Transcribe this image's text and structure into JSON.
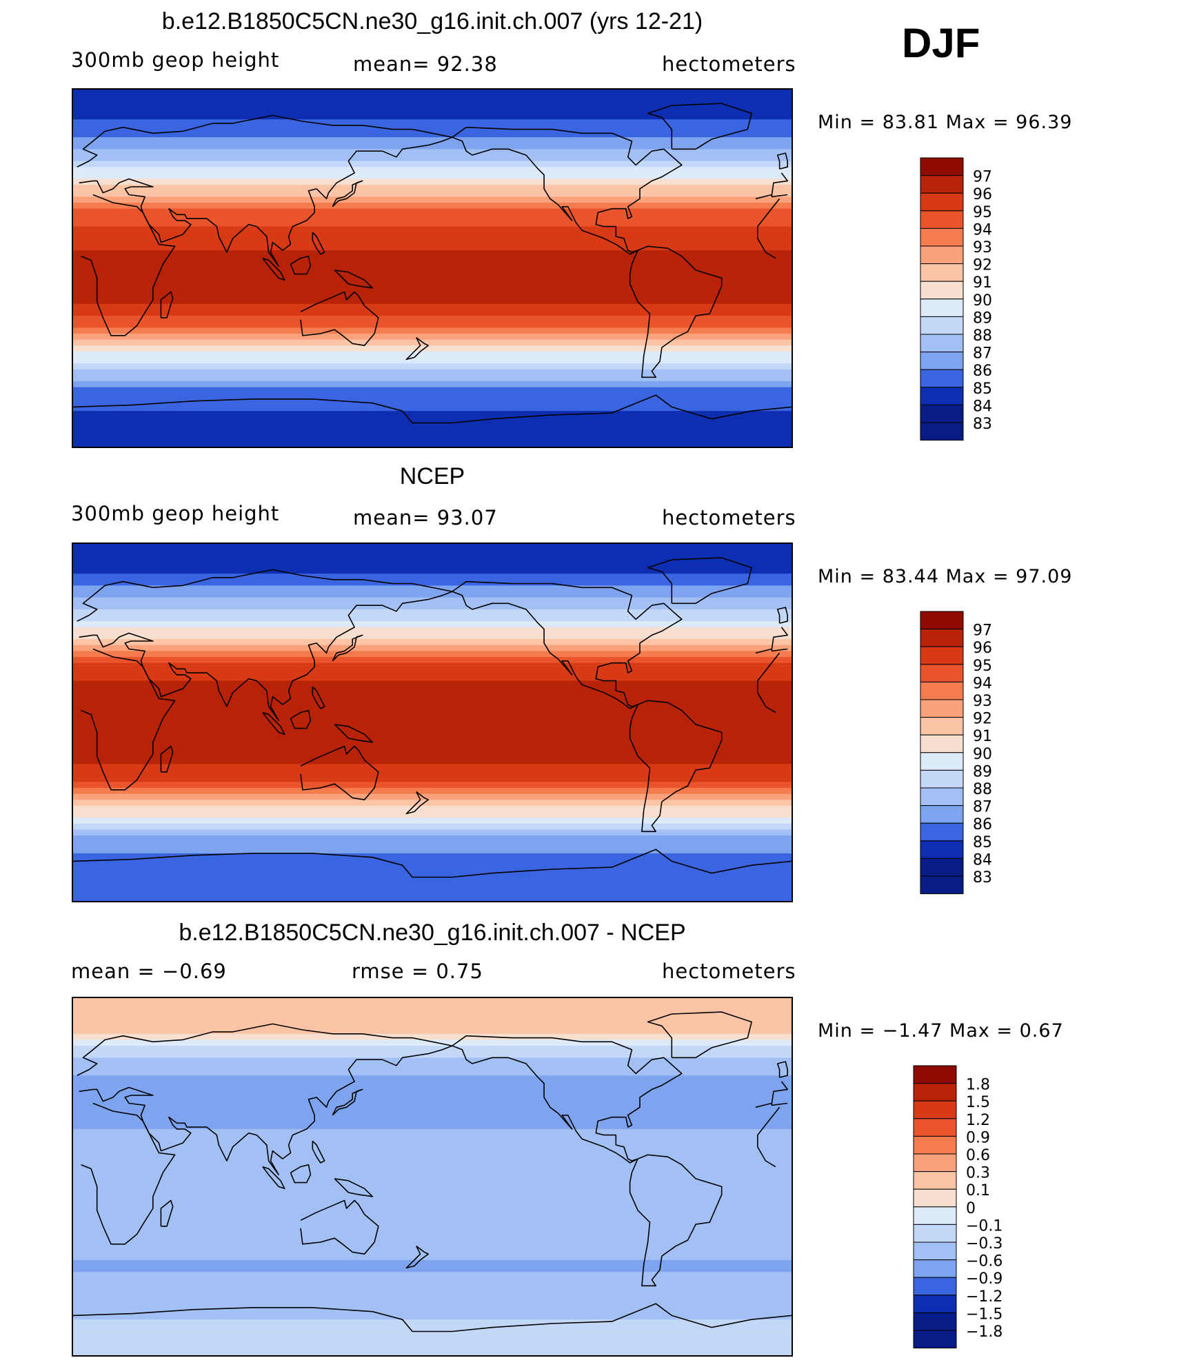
{
  "season": "DJF",
  "colors": {
    "warm": [
      "#f7dfd0",
      "#fbc4a6",
      "#f9a27b",
      "#f47c4f",
      "#e9542a",
      "#d73a14",
      "#b82307",
      "#8f0b03"
    ],
    "cool": [
      "#ddeaf9",
      "#c3d7f7",
      "#a3c0f4",
      "#7ea4f0",
      "#5b86eb",
      "#3a65e0",
      "#1f48d0",
      "#0d2eb0",
      "#071c86"
    ],
    "coast": "#000000"
  },
  "panels": [
    {
      "title": "b.e12.B1850C5CN.ne30_g16.init.ch.007 (yrs 12-21)",
      "left_label": "300mb  geop  height",
      "center_label": "mean=   92.38",
      "right_label": "hectometers",
      "min_max": "Min  =    83.81  Max  =    96.39"
    },
    {
      "title": "NCEP",
      "left_label": "300mb  geop  height",
      "center_label": "mean=   93.07",
      "right_label": "hectometers",
      "min_max": "Min  =    83.44  Max  =    97.09"
    },
    {
      "title": "b.e12.B1850C5CN.ne30_g16.init.ch.007 - NCEP",
      "left_label": "mean  =   −0.69",
      "center_label": "rmse  =     0.75",
      "right_label": "hectometers",
      "min_max": "Min  =   −1.47  Max  =     0.67"
    }
  ],
  "chart_data": [
    {
      "type": "heatmap",
      "title": "b.e12.B1850C5CN.ne30_g16.init.ch.007 (yrs 12-21)",
      "variable": "300mb geop height",
      "units": "hectometers",
      "mean": 92.38,
      "min": 83.81,
      "max": 96.39,
      "levels": [
        "97",
        "96",
        "95",
        "94",
        "93",
        "92",
        "91",
        "90",
        "89",
        "88",
        "87",
        "86",
        "85",
        "84",
        "83"
      ],
      "profile": [
        {
          "lat": 90,
          "v": 83.8
        },
        {
          "lat": 75,
          "v": 84.5
        },
        {
          "lat": 60,
          "v": 86.5
        },
        {
          "lat": 45,
          "v": 89.5
        },
        {
          "lat": 30,
          "v": 93.5
        },
        {
          "lat": 15,
          "v": 95.3
        },
        {
          "lat": 0,
          "v": 95.8
        },
        {
          "lat": -15,
          "v": 95.8
        },
        {
          "lat": -30,
          "v": 93.5
        },
        {
          "lat": -45,
          "v": 89.0
        },
        {
          "lat": -60,
          "v": 85.5
        },
        {
          "lat": -75,
          "v": 84.3
        },
        {
          "lat": -90,
          "v": 84.0
        }
      ]
    },
    {
      "type": "heatmap",
      "title": "NCEP",
      "variable": "300mb geop height",
      "units": "hectometers",
      "mean": 93.07,
      "min": 83.44,
      "max": 97.09,
      "levels": [
        "97",
        "96",
        "95",
        "94",
        "93",
        "92",
        "91",
        "90",
        "89",
        "88",
        "87",
        "86",
        "85",
        "84",
        "83"
      ],
      "profile": [
        {
          "lat": 90,
          "v": 83.8
        },
        {
          "lat": 75,
          "v": 84.5
        },
        {
          "lat": 60,
          "v": 86.8
        },
        {
          "lat": 45,
          "v": 90.0
        },
        {
          "lat": 30,
          "v": 94.5
        },
        {
          "lat": 15,
          "v": 96.3
        },
        {
          "lat": 0,
          "v": 96.5
        },
        {
          "lat": -15,
          "v": 96.5
        },
        {
          "lat": -30,
          "v": 94.5
        },
        {
          "lat": -45,
          "v": 90.0
        },
        {
          "lat": -60,
          "v": 86.0
        },
        {
          "lat": -75,
          "v": 84.6
        },
        {
          "lat": -90,
          "v": 84.5
        }
      ]
    },
    {
      "type": "heatmap",
      "title": "b.e12.B1850C5CN.ne30_g16.init.ch.007 - NCEP",
      "units": "hectometers",
      "mean": -0.69,
      "rmse": 0.75,
      "min": -1.47,
      "max": 0.67,
      "levels": [
        "1.8",
        "1.5",
        "1.2",
        "0.9",
        "0.6",
        "0.3",
        "0.1",
        "0",
        "−0.1",
        "−0.3",
        "−0.6",
        "−0.9",
        "−1.2",
        "−1.5",
        "−1.8"
      ],
      "profile": [
        {
          "lat": 90,
          "v": 0.1
        },
        {
          "lat": 75,
          "v": 0.2
        },
        {
          "lat": 60,
          "v": -0.5
        },
        {
          "lat": 45,
          "v": -0.9
        },
        {
          "lat": 30,
          "v": -0.8
        },
        {
          "lat": 15,
          "v": -0.7
        },
        {
          "lat": 0,
          "v": -0.7
        },
        {
          "lat": -15,
          "v": -0.6
        },
        {
          "lat": -30,
          "v": -0.5
        },
        {
          "lat": -45,
          "v": -0.8
        },
        {
          "lat": -60,
          "v": -0.6
        },
        {
          "lat": -75,
          "v": -0.4
        },
        {
          "lat": -90,
          "v": -0.2
        }
      ]
    }
  ]
}
